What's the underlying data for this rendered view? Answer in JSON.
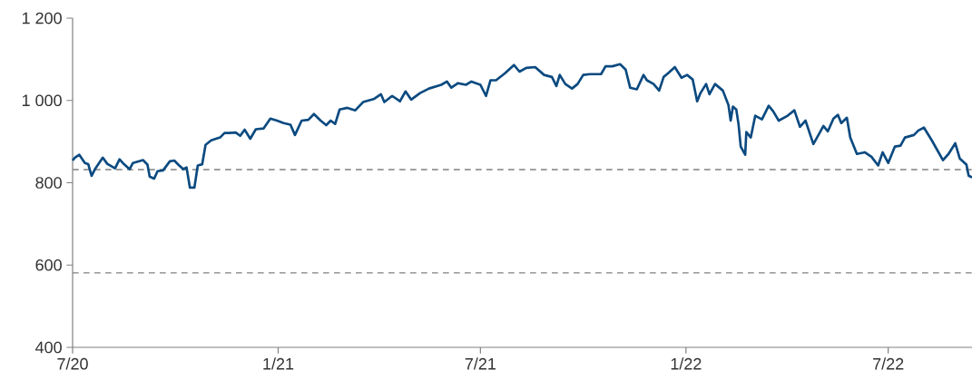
{
  "chart_data": {
    "type": "line",
    "x": [
      "2020-07-01",
      "2020-07-03",
      "2020-07-07",
      "2020-07-12",
      "2020-07-15",
      "2020-07-18",
      "2020-07-21",
      "2020-07-28",
      "2020-08-01",
      "2020-08-08",
      "2020-08-12",
      "2020-08-16",
      "2020-08-21",
      "2020-08-24",
      "2020-09-02",
      "2020-09-06",
      "2020-09-08",
      "2020-09-12",
      "2020-09-15",
      "2020-09-20",
      "2020-09-26",
      "2020-09-30",
      "2020-10-04",
      "2020-10-08",
      "2020-10-11",
      "2020-10-14",
      "2020-10-18",
      "2020-10-21",
      "2020-10-25",
      "2020-10-28",
      "2020-11-02",
      "2020-11-10",
      "2020-11-14",
      "2020-11-18",
      "2020-11-24",
      "2020-11-28",
      "2020-12-02",
      "2020-12-07",
      "2020-12-12",
      "2020-12-19",
      "2020-12-25",
      "2020-12-31",
      "2021-01-06",
      "2021-01-12",
      "2021-01-16",
      "2021-01-22",
      "2021-01-28",
      "2021-02-02",
      "2021-02-08",
      "2021-02-13",
      "2021-02-17",
      "2021-02-21",
      "2021-02-25",
      "2021-03-04",
      "2021-03-11",
      "2021-03-18",
      "2021-03-28",
      "2021-04-03",
      "2021-04-06",
      "2021-04-13",
      "2021-04-20",
      "2021-04-25",
      "2021-04-30",
      "2021-05-08",
      "2021-05-16",
      "2021-05-27",
      "2021-06-01",
      "2021-06-05",
      "2021-06-11",
      "2021-06-18",
      "2021-06-23",
      "2021-07-01",
      "2021-07-06",
      "2021-07-10",
      "2021-07-15",
      "2021-07-23",
      "2021-07-31",
      "2021-08-05",
      "2021-08-11",
      "2021-08-19",
      "2021-08-27",
      "2021-09-03",
      "2021-09-07",
      "2021-09-10",
      "2021-09-15",
      "2021-09-21",
      "2021-09-26",
      "2021-10-01",
      "2021-10-07",
      "2021-10-17",
      "2021-10-21",
      "2021-10-27",
      "2021-11-03",
      "2021-11-08",
      "2021-11-12",
      "2021-11-18",
      "2021-11-24",
      "2021-11-27",
      "2021-12-03",
      "2021-12-08",
      "2021-12-12",
      "2021-12-16",
      "2021-12-22",
      "2021-12-28",
      "2022-01-02",
      "2022-01-07",
      "2022-01-11",
      "2022-01-14",
      "2022-01-19",
      "2022-01-22",
      "2022-01-27",
      "2022-02-03",
      "2022-02-08",
      "2022-02-10",
      "2022-02-12",
      "2022-02-15",
      "2022-02-17",
      "2022-02-19",
      "2022-02-23",
      "2022-02-24",
      "2022-02-28",
      "2022-03-04",
      "2022-03-10",
      "2022-03-16",
      "2022-03-20",
      "2022-03-25",
      "2022-04-02",
      "2022-04-08",
      "2022-04-13",
      "2022-04-18",
      "2022-04-25",
      "2022-04-30",
      "2022-05-04",
      "2022-05-08",
      "2022-05-13",
      "2022-05-17",
      "2022-05-20",
      "2022-05-25",
      "2022-05-28",
      "2022-06-03",
      "2022-06-10",
      "2022-06-16",
      "2022-06-22",
      "2022-06-26",
      "2022-07-01",
      "2022-07-07",
      "2022-07-12",
      "2022-07-16",
      "2022-07-24",
      "2022-07-28",
      "2022-08-02",
      "2022-08-09",
      "2022-08-19",
      "2022-08-24",
      "2022-08-30",
      "2022-09-03",
      "2022-09-09",
      "2022-09-11",
      "2022-09-14"
    ],
    "series": [
      {
        "color": "#0b4a80",
        "values": [
          854,
          861,
          868,
          848,
          845,
          817,
          833,
          861,
          846,
          835,
          857,
          845,
          833,
          848,
          855,
          844,
          815,
          810,
          828,
          830,
          852,
          854,
          843,
          833,
          837,
          788,
          788,
          842,
          845,
          892,
          903,
          910,
          921,
          921,
          922,
          914,
          929,
          907,
          930,
          932,
          956,
          951,
          945,
          941,
          916,
          951,
          953,
          967,
          951,
          940,
          951,
          943,
          978,
          982,
          976,
          996,
          1004,
          1015,
          996,
          1011,
          998,
          1022,
          1002,
          1018,
          1029,
          1038,
          1046,
          1031,
          1042,
          1038,
          1046,
          1038,
          1011,
          1049,
          1049,
          1066,
          1086,
          1070,
          1079,
          1081,
          1062,
          1057,
          1035,
          1062,
          1040,
          1029,
          1040,
          1062,
          1064,
          1064,
          1083,
          1083,
          1088,
          1075,
          1031,
          1027,
          1062,
          1049,
          1040,
          1024,
          1057,
          1066,
          1081,
          1055,
          1062,
          1051,
          998,
          1018,
          1040,
          1015,
          1040,
          1024,
          989,
          951,
          985,
          978,
          943,
          888,
          868,
          923,
          910,
          963,
          954,
          987,
          974,
          951,
          963,
          976,
          936,
          951,
          894,
          918,
          938,
          925,
          956,
          965,
          945,
          958,
          910,
          870,
          874,
          863,
          842,
          874,
          848,
          888,
          890,
          910,
          916,
          927,
          934,
          903,
          855,
          870,
          896,
          859,
          844,
          817,
          813
        ]
      }
    ],
    "xlim": [
      "2020-07-01",
      "2022-09-14"
    ],
    "xticks": [
      {
        "value": "2020-07-01",
        "label": "7/20"
      },
      {
        "value": "2021-01-01",
        "label": "1/21"
      },
      {
        "value": "2021-07-01",
        "label": "7/21"
      },
      {
        "value": "2022-01-01",
        "label": "1/22"
      },
      {
        "value": "2022-07-01",
        "label": "7/22"
      }
    ],
    "ylim": [
      400,
      1200
    ],
    "yticks": [
      400,
      600,
      800,
      {
        "value": 1000,
        "label": "1 000"
      },
      {
        "value": 1200,
        "label": "1 200"
      }
    ],
    "ref_lines": [
      {
        "axis": "y",
        "value": 832,
        "color": "#808080",
        "line_style": "dashed"
      },
      {
        "axis": "y",
        "value": 581,
        "color": "#808080",
        "line_style": "dashed"
      }
    ],
    "grid": false,
    "marker": "none",
    "line_style": "solid"
  }
}
